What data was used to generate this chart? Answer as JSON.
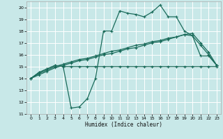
{
  "xlabel": "Humidex (Indice chaleur)",
  "xlim": [
    -0.5,
    23.5
  ],
  "ylim": [
    11,
    20.5
  ],
  "yticks": [
    11,
    12,
    13,
    14,
    15,
    16,
    17,
    18,
    19,
    20
  ],
  "xticks": [
    0,
    1,
    2,
    3,
    4,
    5,
    6,
    7,
    8,
    9,
    10,
    11,
    12,
    13,
    14,
    15,
    16,
    17,
    18,
    19,
    20,
    21,
    22,
    23
  ],
  "bg_color": "#c8e8e8",
  "grid_color": "#ffffff",
  "line_color": "#1a6b5a",
  "lines": [
    {
      "x": [
        0,
        1,
        2,
        3,
        4,
        5,
        6,
        7,
        8,
        9,
        10,
        11,
        12,
        13,
        14,
        15,
        16,
        17,
        18,
        19,
        20,
        21,
        22,
        23
      ],
      "y": [
        14.0,
        14.5,
        14.8,
        15.1,
        15.0,
        11.5,
        11.6,
        12.3,
        14.0,
        18.0,
        18.0,
        19.7,
        19.5,
        19.4,
        19.2,
        19.6,
        20.2,
        19.2,
        19.2,
        18.0,
        17.6,
        15.9,
        15.9,
        15.1
      ]
    },
    {
      "x": [
        0,
        1,
        2,
        3,
        4,
        5,
        6,
        7,
        8,
        9,
        10,
        11,
        12,
        13,
        14,
        15,
        16,
        17,
        18,
        19,
        20,
        21,
        22,
        23
      ],
      "y": [
        14.0,
        14.5,
        14.8,
        15.1,
        15.0,
        15.0,
        15.0,
        15.0,
        15.0,
        15.0,
        15.0,
        15.0,
        15.0,
        15.0,
        15.0,
        15.0,
        15.0,
        15.0,
        15.0,
        15.0,
        15.0,
        15.0,
        15.0,
        15.0
      ]
    },
    {
      "x": [
        0,
        1,
        2,
        3,
        4,
        5,
        6,
        7,
        8,
        9,
        10,
        11,
        12,
        13,
        14,
        15,
        16,
        17,
        18,
        19,
        20,
        21,
        22,
        23
      ],
      "y": [
        14.0,
        14.3,
        14.6,
        14.9,
        15.1,
        15.3,
        15.5,
        15.6,
        15.8,
        16.0,
        16.1,
        16.3,
        16.5,
        16.6,
        16.8,
        17.0,
        17.1,
        17.3,
        17.5,
        17.7,
        17.8,
        17.0,
        16.2,
        15.1
      ]
    },
    {
      "x": [
        0,
        1,
        2,
        3,
        4,
        5,
        6,
        7,
        8,
        9,
        10,
        11,
        12,
        13,
        14,
        15,
        16,
        17,
        18,
        19,
        20,
        21,
        22,
        23
      ],
      "y": [
        14.0,
        14.4,
        14.7,
        15.0,
        15.2,
        15.4,
        15.6,
        15.7,
        15.9,
        16.1,
        16.3,
        16.4,
        16.6,
        16.8,
        16.9,
        17.1,
        17.2,
        17.4,
        17.5,
        17.7,
        17.6,
        16.8,
        16.0,
        15.1
      ]
    }
  ]
}
